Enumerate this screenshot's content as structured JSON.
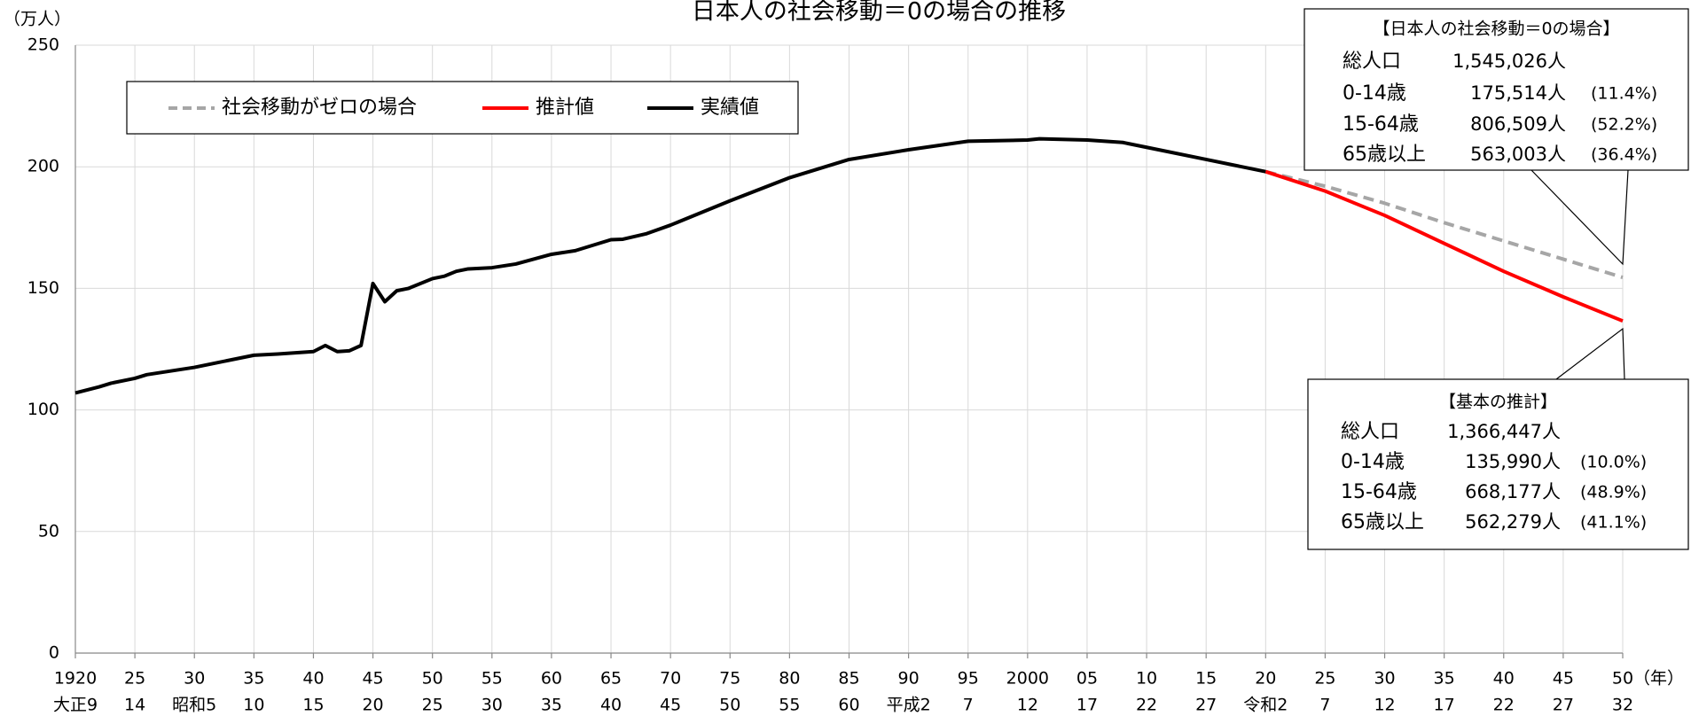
{
  "chart_data": {
    "type": "line",
    "title": "日本人の社会移動＝0の場合の推移",
    "y_unit": "（万人）",
    "x_unit": "（年）",
    "xlim": [
      1920,
      2050
    ],
    "ylim": [
      0,
      250
    ],
    "yticks": [
      0,
      50,
      100,
      150,
      200,
      250
    ],
    "xticks": [
      {
        "value": 1920,
        "label": "1920"
      },
      {
        "value": 1925,
        "label": "25"
      },
      {
        "value": 1930,
        "label": "30"
      },
      {
        "value": 1935,
        "label": "35"
      },
      {
        "value": 1940,
        "label": "40"
      },
      {
        "value": 1945,
        "label": "45"
      },
      {
        "value": 1950,
        "label": "50"
      },
      {
        "value": 1955,
        "label": "55"
      },
      {
        "value": 1960,
        "label": "60"
      },
      {
        "value": 1965,
        "label": "65"
      },
      {
        "value": 1970,
        "label": "70"
      },
      {
        "value": 1975,
        "label": "75"
      },
      {
        "value": 1980,
        "label": "80"
      },
      {
        "value": 1985,
        "label": "85"
      },
      {
        "value": 1990,
        "label": "90"
      },
      {
        "value": 1995,
        "label": "95"
      },
      {
        "value": 2000,
        "label": "2000"
      },
      {
        "value": 2005,
        "label": "05"
      },
      {
        "value": 2010,
        "label": "10"
      },
      {
        "value": 2015,
        "label": "15"
      },
      {
        "value": 2020,
        "label": "20"
      },
      {
        "value": 2025,
        "label": "25"
      },
      {
        "value": 2030,
        "label": "30"
      },
      {
        "value": 2035,
        "label": "35"
      },
      {
        "value": 2040,
        "label": "40"
      },
      {
        "value": 2045,
        "label": "45"
      },
      {
        "value": 2050,
        "label": "50"
      }
    ],
    "x_era_labels": [
      "大正9",
      "14",
      "昭和5",
      "10",
      "15",
      "20",
      "25",
      "30",
      "35",
      "40",
      "45",
      "50",
      "55",
      "60",
      "平成2",
      "7",
      "12",
      "17",
      "22",
      "27",
      "令和2",
      "7",
      "12",
      "17",
      "22",
      "27",
      "32"
    ],
    "grid": true,
    "series": [
      {
        "name": "社会移動がゼロの場合",
        "color": "#a6a6a6",
        "dashed": true,
        "x": [
          2020,
          2025,
          2030,
          2035,
          2040,
          2045,
          2050
        ],
        "values": [
          198,
          192,
          185,
          177,
          169.5,
          162,
          154.5
        ]
      },
      {
        "name": "推計値",
        "color": "#ff0000",
        "dashed": false,
        "x": [
          2020,
          2025,
          2030,
          2035,
          2040,
          2045,
          2050
        ],
        "values": [
          198,
          190,
          180,
          168.5,
          157,
          146.5,
          136.6
        ]
      },
      {
        "name": "実績値",
        "color": "#000000",
        "dashed": false,
        "x": [
          1920,
          1922,
          1923,
          1925,
          1926,
          1930,
          1932,
          1935,
          1937,
          1940,
          1941,
          1942,
          1943,
          1944,
          1945,
          1946,
          1947,
          1948,
          1950,
          1951,
          1952,
          1953,
          1955,
          1957,
          1960,
          1962,
          1965,
          1966,
          1968,
          1970,
          1975,
          1980,
          1985,
          1990,
          1995,
          2000,
          2001,
          2005,
          2008,
          2010,
          2015,
          2020
        ],
        "values": [
          107,
          109.5,
          111,
          113,
          114.5,
          117.5,
          119.5,
          122.5,
          123,
          124,
          126.5,
          124,
          124.3,
          126.5,
          152,
          144.5,
          149,
          150,
          154,
          155,
          157,
          158,
          158.5,
          160,
          164,
          165.5,
          170,
          170.2,
          172.5,
          176,
          186,
          195.5,
          203,
          207,
          210.5,
          211,
          211.5,
          211,
          210,
          208,
          203,
          198
        ]
      }
    ],
    "annotations": [
      {
        "title": "【日本人の社会移動＝0の場合】",
        "rows": [
          [
            "総人口",
            "1,545,026人",
            ""
          ],
          [
            "0-14歳",
            "175,514人",
            "(11.4%)"
          ],
          [
            "15-64歳",
            "806,509人",
            "(52.2%)"
          ],
          [
            "65歳以上",
            "563,003人",
            "(36.4%)"
          ]
        ]
      },
      {
        "title": "【基本の推計】",
        "rows": [
          [
            "総人口",
            "1,366,447人",
            ""
          ],
          [
            "0-14歳",
            "135,990人",
            "(10.0%)"
          ],
          [
            "15-64歳",
            "668,177人",
            "(48.9%)"
          ],
          [
            "65歳以上",
            "562,279人",
            "(41.1%)"
          ]
        ]
      }
    ]
  }
}
